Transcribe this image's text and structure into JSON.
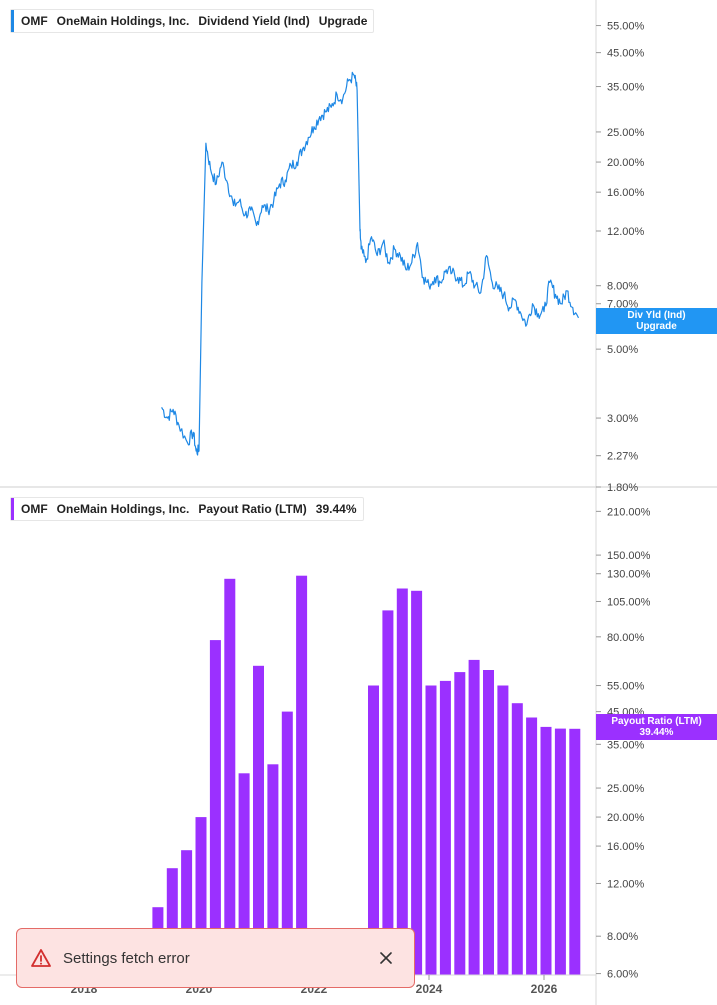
{
  "top_legend": {
    "ticker": "OMF",
    "company": "OneMain Holdings, Inc.",
    "metric": "Dividend Yield (Ind)",
    "value": "Upgrade",
    "color": "#1e88e5"
  },
  "bottom_legend": {
    "ticker": "OMF",
    "company": "OneMain Holdings, Inc.",
    "metric": "Payout Ratio (LTM)",
    "value": "39.44%",
    "color": "#9b30ff"
  },
  "top_tag": {
    "line1": "Div Yld (Ind)",
    "line2": "Upgrade",
    "color": "#2196f3"
  },
  "bottom_tag": {
    "line1": "Payout Ratio (LTM)",
    "line2": "39.44%",
    "color": "#9b30ff"
  },
  "toast": {
    "message": "Settings fetch error"
  },
  "chart_data": [
    {
      "type": "line",
      "name": "Dividend Yield (Ind)",
      "log_scale": true,
      "ylim": [
        1.8,
        65
      ],
      "x_axis_ticks": [
        "2018",
        "2020",
        "2022",
        "2024",
        "2026"
      ],
      "y_ticks": [
        "55.00%",
        "45.00%",
        "35.00%",
        "25.00%",
        "20.00%",
        "16.00%",
        "12.00%",
        "8.00%",
        "7.00%",
        "5.00%",
        "3.00%",
        "2.27%",
        "1.80%"
      ],
      "x": [
        2019.35,
        2019.45,
        2019.55,
        2019.65,
        2019.8,
        2019.9,
        2019.95,
        2020.0,
        2020.05,
        2020.12,
        2020.2,
        2020.3,
        2020.4,
        2020.5,
        2020.6,
        2020.7,
        2020.8,
        2020.9,
        2021.0,
        2021.1,
        2021.2,
        2021.3,
        2021.4,
        2021.5,
        2021.6,
        2021.7,
        2021.8,
        2021.9,
        2022.0,
        2022.1,
        2022.2,
        2022.3,
        2022.4,
        2022.5,
        2022.6,
        2022.7,
        2022.75,
        2022.8,
        2022.82,
        2022.9,
        2023.0,
        2023.1,
        2023.2,
        2023.3,
        2023.4,
        2023.5,
        2023.6,
        2023.7,
        2023.8,
        2023.9,
        2024.0,
        2024.1,
        2024.2,
        2024.3,
        2024.4,
        2024.5,
        2024.6,
        2024.7,
        2024.8,
        2024.9,
        2025.0,
        2025.1,
        2025.2,
        2025.3,
        2025.4,
        2025.5,
        2025.6,
        2025.7,
        2025.8,
        2025.9,
        2026.0,
        2026.1,
        2026.2,
        2026.3,
        2026.4,
        2026.5,
        2026.6
      ],
      "y": [
        3.25,
        3.0,
        3.2,
        2.85,
        2.5,
        2.7,
        2.35,
        2.35,
        8.2,
        23.0,
        19.0,
        17.0,
        20.0,
        17.0,
        14.5,
        15.0,
        13.5,
        14.0,
        12.5,
        14.5,
        14.0,
        15.0,
        17.0,
        17.5,
        19.5,
        20.0,
        22.0,
        24.0,
        26.0,
        28.0,
        29.0,
        30.0,
        33.0,
        32.0,
        36.5,
        38.0,
        34.0,
        12.0,
        10.5,
        9.5,
        11.5,
        10.0,
        11.0,
        9.5,
        10.5,
        10.0,
        9.0,
        9.5,
        11.0,
        8.5,
        8.0,
        8.5,
        8.2,
        9.0,
        8.8,
        8.5,
        8.0,
        8.8,
        8.0,
        7.6,
        10.0,
        8.2,
        7.8,
        7.5,
        6.8,
        7.2,
        6.5,
        6.0,
        7.0,
        6.5,
        6.6,
        8.2,
        7.5,
        7.0,
        7.7,
        6.8,
        6.3
      ]
    },
    {
      "type": "bar",
      "name": "Payout Ratio (LTM)",
      "log_scale": true,
      "ylim": [
        5.8,
        240
      ],
      "x_axis_ticks": [
        "2018",
        "2020",
        "2022",
        "2024",
        "2026"
      ],
      "y_ticks": [
        "210.00%",
        "150.00%",
        "130.00%",
        "105.00%",
        "80.00%",
        "55.00%",
        "45.00%",
        "35.00%",
        "25.00%",
        "20.00%",
        "16.00%",
        "12.00%",
        "8.00%",
        "6.00%"
      ],
      "x": [
        2019.25,
        2019.5,
        2019.75,
        2020.0,
        2020.25,
        2020.5,
        2020.75,
        2021.0,
        2021.25,
        2021.5,
        2021.75,
        2022.0,
        2022.25,
        2022.5,
        2022.75,
        2023.0,
        2023.25,
        2023.5,
        2023.75,
        2024.0,
        2024.25,
        2024.5,
        2024.75,
        2025.0,
        2025.25,
        2025.5,
        2025.75,
        2026.0,
        2026.25,
        2026.5
      ],
      "values": [
        10.0,
        13.5,
        15.5,
        20.0,
        78.0,
        125.0,
        28.0,
        64.0,
        30.0,
        45.0,
        128.0,
        null,
        null,
        null,
        null,
        55.0,
        98.0,
        116.0,
        114.0,
        55.0,
        57.0,
        61.0,
        67.0,
        62.0,
        55.0,
        48.0,
        43.0,
        40.0,
        39.5,
        39.44
      ]
    }
  ]
}
